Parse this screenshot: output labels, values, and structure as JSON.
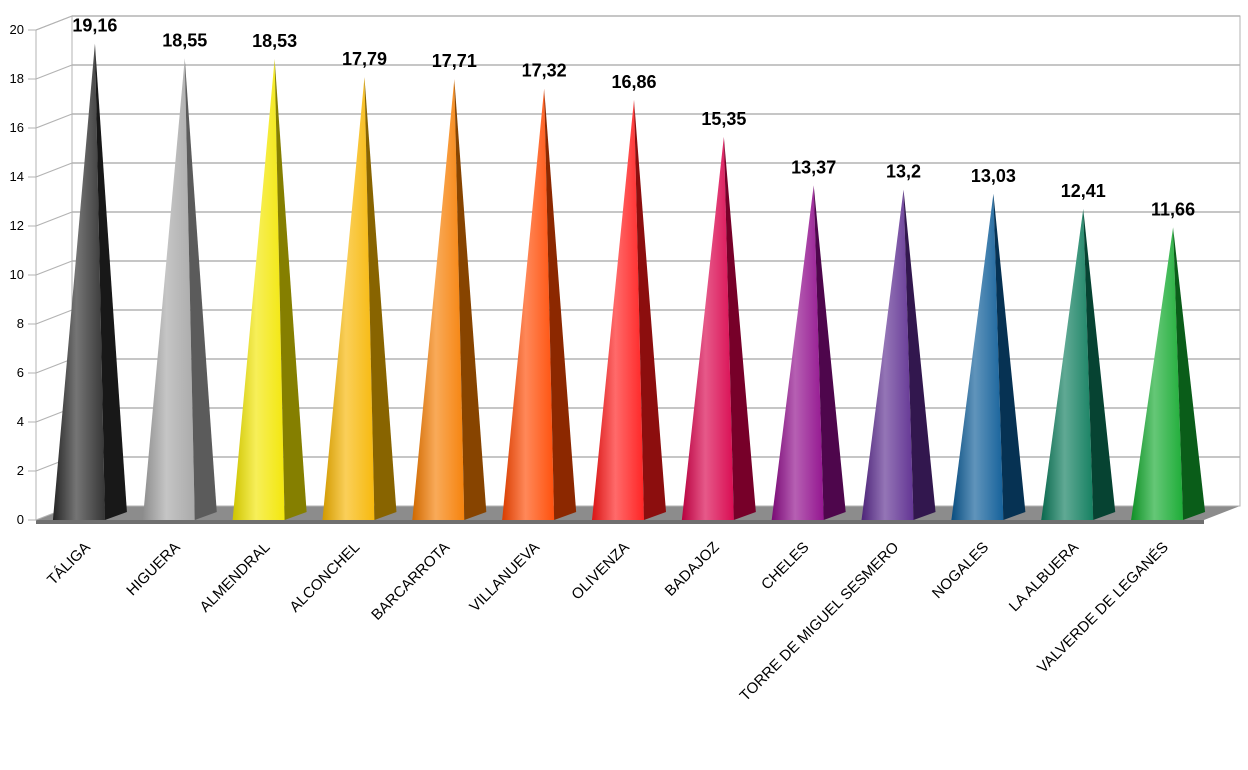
{
  "chart_data": {
    "type": "bar",
    "categories": [
      "TÁLIGA",
      "HIGUERA",
      "ALMENDRAL",
      "ALCONCHEL",
      "BARCARROTA",
      "VILLANUEVA",
      "OLIVENZA",
      "BADAJOZ",
      "CHELES",
      "TORRE DE MIGUEL SESMERO",
      "NOGALES",
      "LA ALBUERA",
      "VALVERDE DE LEGANÉS"
    ],
    "values": [
      19.16,
      18.55,
      18.53,
      17.79,
      17.71,
      17.32,
      16.86,
      15.35,
      13.37,
      13.2,
      13.03,
      12.41,
      11.66
    ],
    "value_labels": [
      "19,16",
      "18,55",
      "18,53",
      "17,79",
      "17,71",
      "17,32",
      "16,86",
      "15,35",
      "13,37",
      "13,2",
      "13,03",
      "12,41",
      "11,66"
    ],
    "y_ticks": [
      "0",
      "2",
      "4",
      "6",
      "8",
      "10",
      "12",
      "14",
      "16",
      "18",
      "20"
    ],
    "ylim": [
      0,
      20
    ],
    "grid": true,
    "legend": "none",
    "colors": [
      "#2b2b2b",
      "#a6a6a6",
      "#f2e600",
      "#f7b500",
      "#f57c00",
      "#ff4800",
      "#ff1a1a",
      "#d8004a",
      "#8e0a8a",
      "#5b2a8e",
      "#0a5a96",
      "#0a7a5a",
      "#12a92d"
    ],
    "title": "",
    "xlabel": "",
    "ylabel": ""
  }
}
